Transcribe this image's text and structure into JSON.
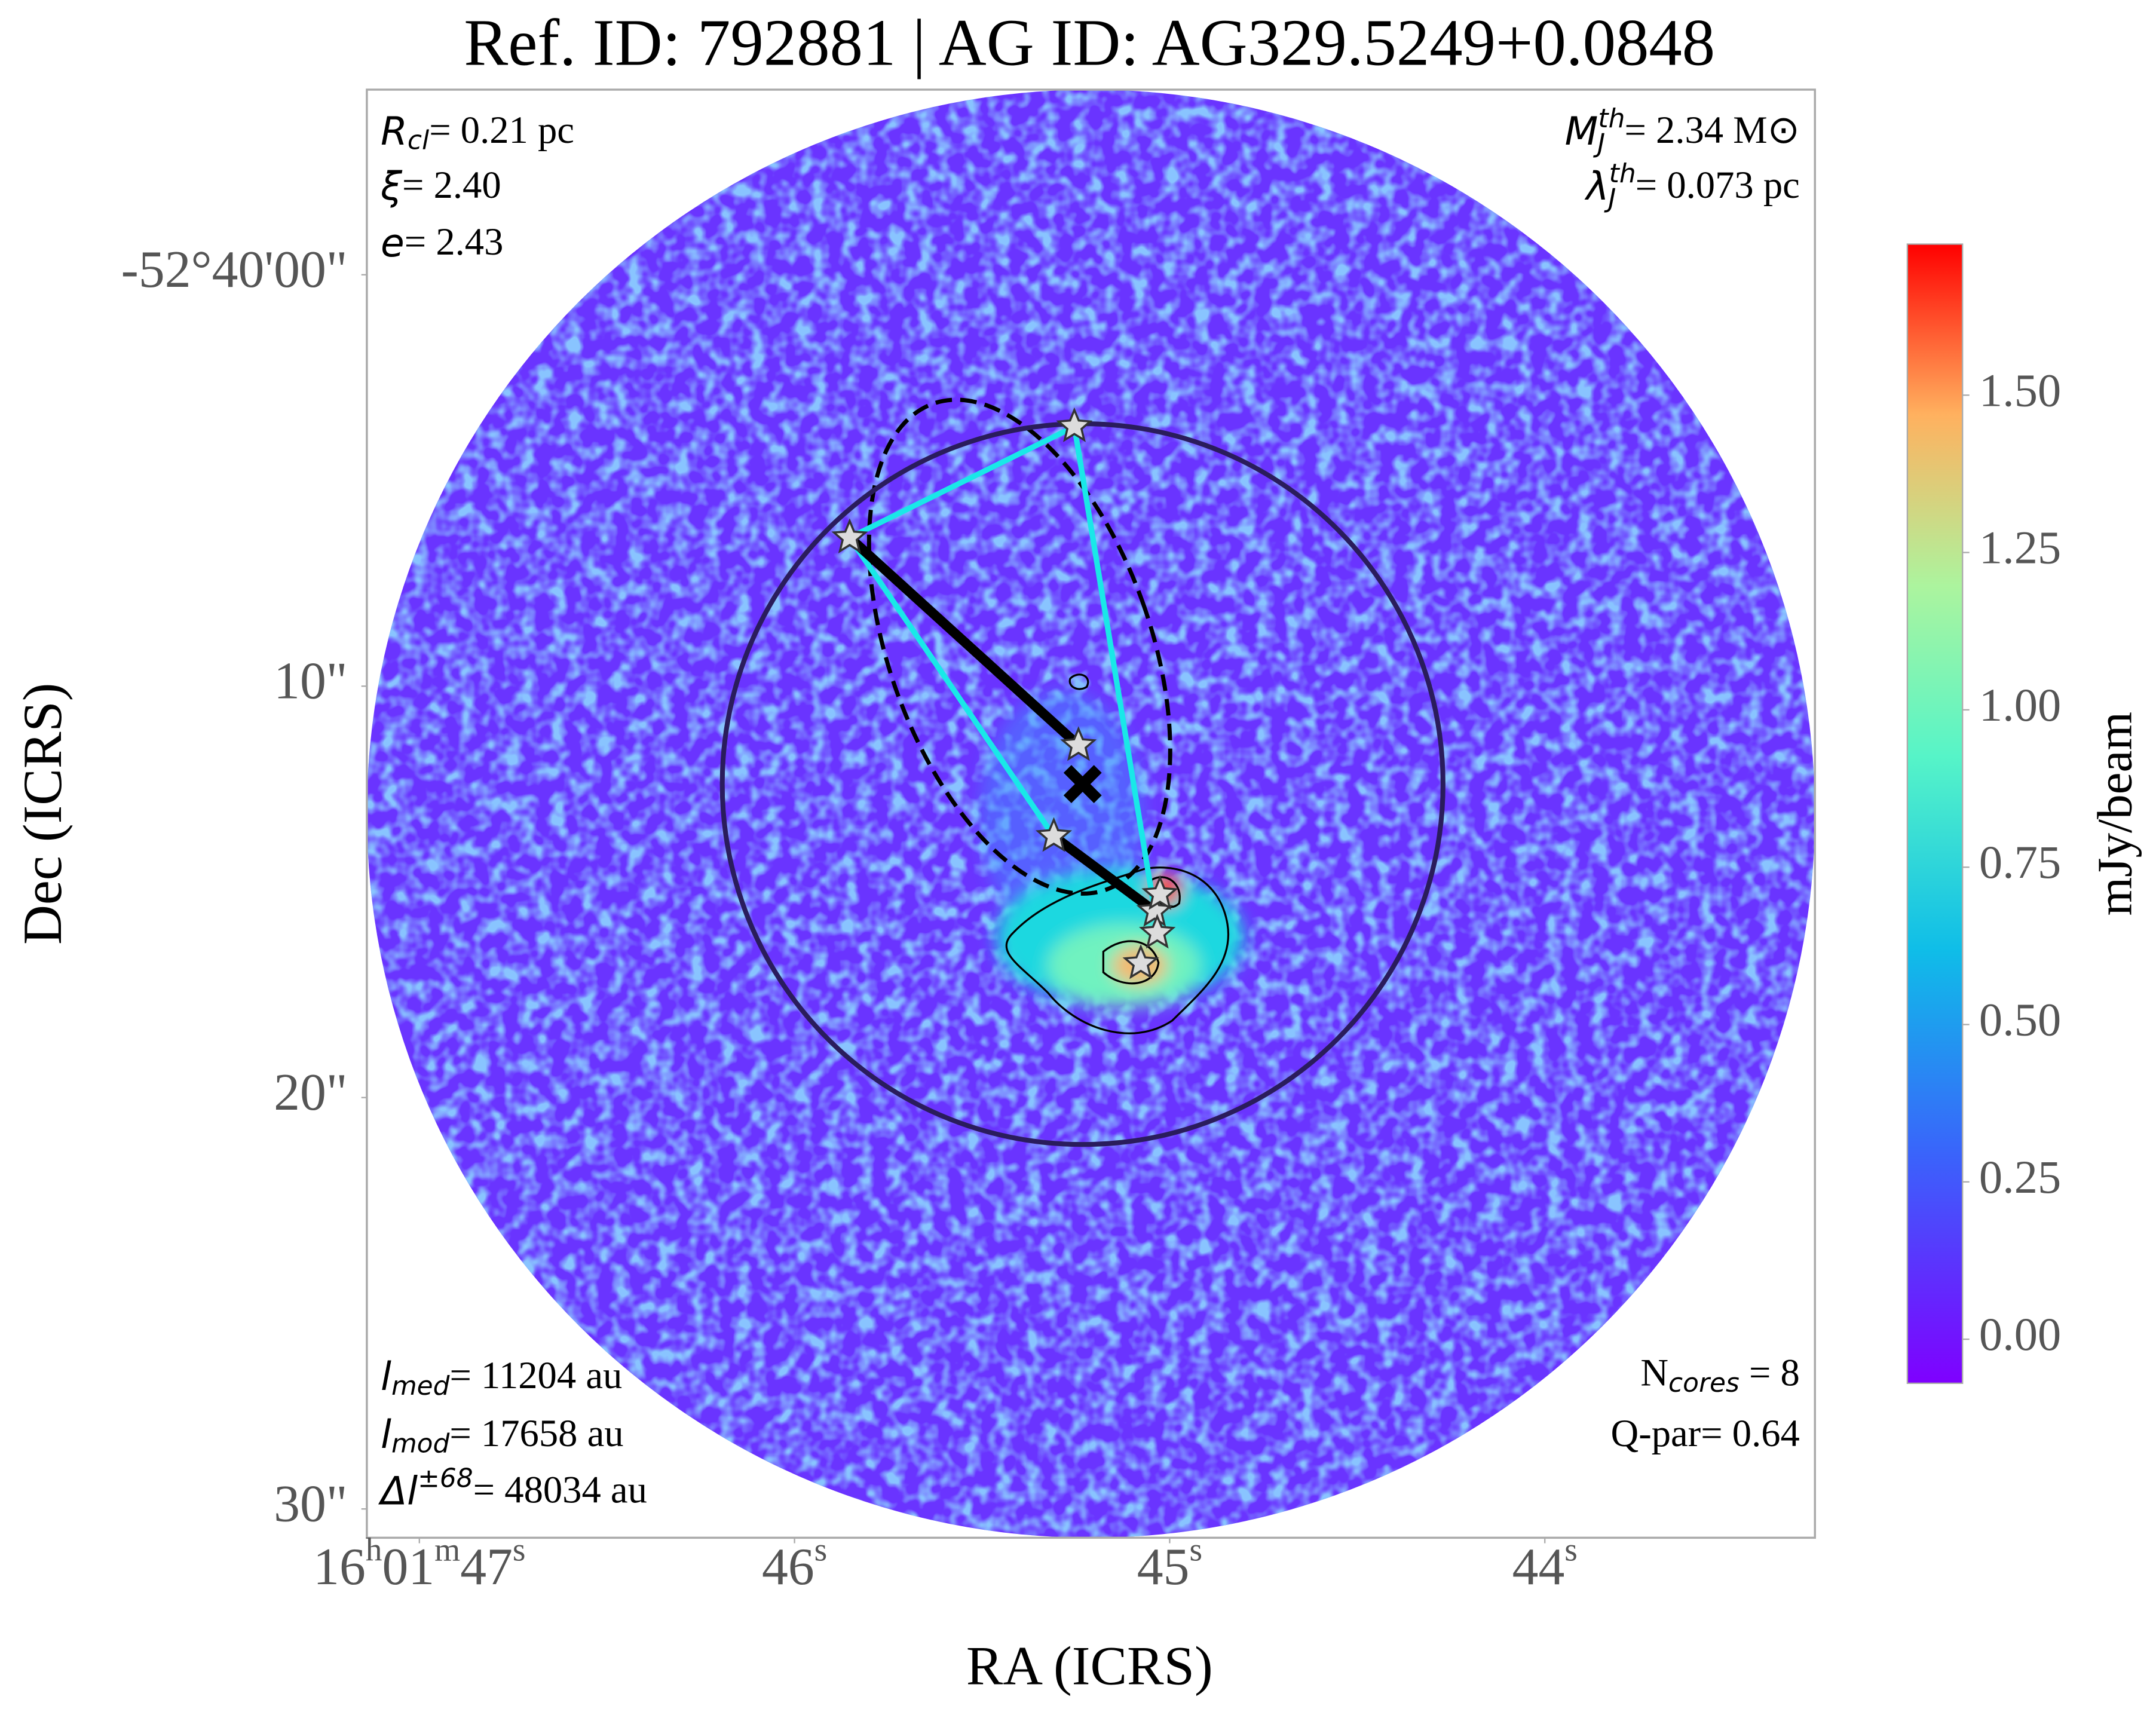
{
  "chart_data": {
    "type": "map",
    "title": "Ref. ID: 792881 | AG ID: AG329.5249+0.0848",
    "xlabel": "RA (ICRS)",
    "ylabel": "Dec (ICRS)",
    "xlim": [
      47.14,
      43.28
    ],
    "xticks": [
      {
        "value": 47,
        "label": "16h01m47s"
      },
      {
        "value": 46,
        "label": "46s"
      },
      {
        "value": 45,
        "label": "45s"
      },
      {
        "value": 44,
        "label": "44s"
      }
    ],
    "ylim": [
      -4.5,
      30.7
    ],
    "yticks": [
      {
        "value": 0,
        "label": "-52°40'00\""
      },
      {
        "value": 10,
        "label": "10\""
      },
      {
        "value": 20,
        "label": "20\""
      },
      {
        "value": 30,
        "label": "30\""
      }
    ],
    "colorbar": {
      "label": "mJy/beam",
      "lim": [
        -0.07,
        1.74
      ],
      "ticks": [
        {
          "value": 0,
          "label": "0.00"
        },
        {
          "value": 0.25,
          "label": "0.25"
        },
        {
          "value": 0.5,
          "label": "0.50"
        },
        {
          "value": 0.75,
          "label": "0.75"
        },
        {
          "value": 1,
          "label": "1.00"
        },
        {
          "value": 1.25,
          "label": "1.25"
        },
        {
          "value": 1.5,
          "label": "1.50"
        }
      ]
    },
    "annotations": {
      "top_left": [
        {
          "symbol": "R",
          "sub": "cl",
          "text": "= 0.21 pc"
        },
        {
          "symbol": "ξ",
          "text": "= 2.40"
        },
        {
          "symbol": "e",
          "text": "= 2.43"
        }
      ],
      "top_right": [
        {
          "symbol": "M",
          "sup": "th",
          "sub": "J",
          "text": "= 2.34 M⊙"
        },
        {
          "symbol": "λ",
          "sup": "th",
          "sub": "J",
          "text": "= 0.073 pc"
        }
      ],
      "bottom_left": [
        {
          "symbol": "l",
          "sub": "med",
          "text": "= 11204 au"
        },
        {
          "symbol": "l",
          "sub": "mod",
          "text": "= 17658 au"
        },
        {
          "symbol": "Δl",
          "sup": "±68",
          "text": "= 48034 au"
        }
      ],
      "bottom_right": [
        {
          "symbol": "N",
          "sub": "cores",
          "text": " = 8"
        },
        {
          "symbol": "Q-par",
          "text": "= 0.64"
        }
      ]
    },
    "cores": {
      "x": [
        45.254,
        45.853,
        45.243,
        45.309,
        45.04,
        45.026,
        45.033,
        45.077
      ],
      "y": [
        3.69,
        6.39,
        11.44,
        13.65,
        15.47,
        15.06,
        16.0,
        16.74
      ]
    },
    "mst_edges": [
      [
        0,
        1
      ],
      [
        1,
        3
      ],
      [
        0,
        4
      ]
    ],
    "max_edges": [
      [
        1,
        2
      ],
      [
        3,
        4
      ]
    ],
    "centroid": {
      "x": 45.232,
      "y": 12.38
    },
    "clump_radius": 8.76,
    "ellipse": {
      "x": 45.4,
      "y": 9.04,
      "semi_major": 6.27,
      "semi_minor": 3.18,
      "angle": 19.6
    }
  }
}
